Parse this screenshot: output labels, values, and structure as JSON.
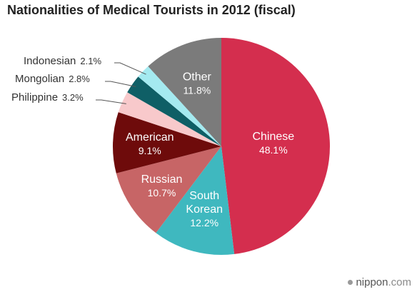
{
  "chart_data": {
    "type": "pie",
    "title": "Nationalities of Medical Tourists in 2012 (fiscal)",
    "unit": "%",
    "slices": [
      {
        "label": "Chinese",
        "label_lines": [
          "Chinese"
        ],
        "value": 48.1,
        "value_text": "48.1%",
        "color": "#d42e4e",
        "label_style": "inside"
      },
      {
        "label": "South Korean",
        "label_lines": [
          "South",
          "Korean"
        ],
        "value": 12.2,
        "value_text": "12.2%",
        "color": "#3fb8bf",
        "label_style": "inside"
      },
      {
        "label": "Russian",
        "label_lines": [
          "Russian"
        ],
        "value": 10.7,
        "value_text": "10.7%",
        "color": "#c76566",
        "label_style": "inside"
      },
      {
        "label": "American",
        "label_lines": [
          "American"
        ],
        "value": 9.1,
        "value_text": "9.1%",
        "color": "#6e0b0b",
        "label_style": "inside"
      },
      {
        "label": "Philippine",
        "label_lines": [
          "Philippine"
        ],
        "value": 3.2,
        "value_text": "3.2%",
        "color": "#f8c9cb",
        "label_style": "outside"
      },
      {
        "label": "Mongolian",
        "label_lines": [
          "Mongolian"
        ],
        "value": 2.8,
        "value_text": "2.8%",
        "color": "#0f5f66",
        "label_style": "outside"
      },
      {
        "label": "Indonesian",
        "label_lines": [
          "Indonesian"
        ],
        "value": 2.1,
        "value_text": "2.1%",
        "color": "#a4eaf0",
        "label_style": "outside"
      },
      {
        "label": "Other",
        "label_lines": [
          "Other"
        ],
        "value": 11.8,
        "value_text": "11.8%",
        "color": "#7b7b7b",
        "label_style": "inside"
      }
    ],
    "start_angle_deg": 0,
    "direction": "clockwise"
  },
  "credit": {
    "brand": "nippon",
    "suffix": ".com"
  }
}
